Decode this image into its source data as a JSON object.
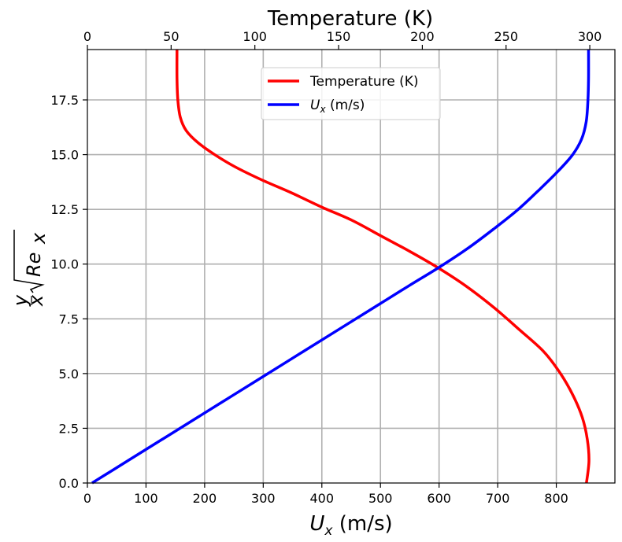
{
  "chart_data": {
    "type": "line",
    "ylabel": "y/x √Re_x",
    "ylabel_parts": {
      "num": "y",
      "den": "x",
      "base": "Re",
      "sub": "x"
    },
    "ylim": [
      0,
      19.8
    ],
    "yticks": [
      0.0,
      2.5,
      5.0,
      7.5,
      10.0,
      12.5,
      15.0,
      17.5
    ],
    "ytick_labels": [
      "0.0",
      "2.5",
      "5.0",
      "7.5",
      "10.0",
      "12.5",
      "15.0",
      "17.5"
    ],
    "bottom_axis": {
      "label": "U_x (m/s)",
      "label_base": "U",
      "label_sub": "x",
      "label_rest": " (m/s)",
      "xlim": [
        0,
        900
      ],
      "ticks": [
        0,
        100,
        200,
        300,
        400,
        500,
        600,
        700,
        800
      ],
      "tick_labels": [
        "0",
        "100",
        "200",
        "300",
        "400",
        "500",
        "600",
        "700",
        "800"
      ]
    },
    "top_axis": {
      "label": "Temperature (K)",
      "xlim": [
        0,
        315
      ],
      "ticks": [
        0,
        50,
        100,
        150,
        200,
        250,
        300
      ],
      "tick_labels": [
        "0",
        "50",
        "100",
        "150",
        "200",
        "250",
        "300"
      ]
    },
    "grid": true,
    "legend": {
      "placement": "upper-center",
      "entries": [
        {
          "label": "Temperature (K)",
          "color": "#ff0000"
        },
        {
          "label": "U_x (m/s)",
          "label_base": "U",
          "label_sub": "x",
          "label_rest": " (m/s)",
          "color": "#0000ff"
        }
      ]
    },
    "series": [
      {
        "name": "Temperature (K)",
        "axis": "top",
        "color": "#ff0000",
        "points": [
          {
            "x": 298.0,
            "y": 0.0
          },
          {
            "x": 299.5,
            "y": 1.0
          },
          {
            "x": 298.5,
            "y": 2.0
          },
          {
            "x": 295.5,
            "y": 3.0
          },
          {
            "x": 290.0,
            "y": 4.0
          },
          {
            "x": 282.5,
            "y": 5.0
          },
          {
            "x": 272.5,
            "y": 6.0
          },
          {
            "x": 258.0,
            "y": 7.0
          },
          {
            "x": 243.0,
            "y": 8.0
          },
          {
            "x": 226.0,
            "y": 9.0
          },
          {
            "x": 209.0,
            "y": 9.85
          },
          {
            "x": 192.0,
            "y": 10.6
          },
          {
            "x": 175.0,
            "y": 11.3
          },
          {
            "x": 158.0,
            "y": 12.0
          },
          {
            "x": 140.0,
            "y": 12.6
          },
          {
            "x": 122.0,
            "y": 13.25
          },
          {
            "x": 104.0,
            "y": 13.85
          },
          {
            "x": 88.0,
            "y": 14.45
          },
          {
            "x": 76.0,
            "y": 15.0
          },
          {
            "x": 66.0,
            "y": 15.55
          },
          {
            "x": 59.0,
            "y": 16.1
          },
          {
            "x": 55.5,
            "y": 16.7
          },
          {
            "x": 54.0,
            "y": 17.5
          },
          {
            "x": 53.5,
            "y": 18.5
          },
          {
            "x": 53.5,
            "y": 19.8
          }
        ]
      },
      {
        "name": "U_x (m/s)",
        "axis": "bottom",
        "color": "#0000ff",
        "points": [
          {
            "x": 8.0,
            "y": 0.0
          },
          {
            "x": 68.0,
            "y": 1.0
          },
          {
            "x": 128.0,
            "y": 2.0
          },
          {
            "x": 188.0,
            "y": 3.0
          },
          {
            "x": 248.0,
            "y": 4.0
          },
          {
            "x": 308.0,
            "y": 5.0
          },
          {
            "x": 368.0,
            "y": 6.0
          },
          {
            "x": 428.0,
            "y": 7.0
          },
          {
            "x": 488.0,
            "y": 8.0
          },
          {
            "x": 548.0,
            "y": 9.0
          },
          {
            "x": 600.0,
            "y": 9.85
          },
          {
            "x": 648.0,
            "y": 10.7
          },
          {
            "x": 693.0,
            "y": 11.6
          },
          {
            "x": 735.0,
            "y": 12.5
          },
          {
            "x": 773.0,
            "y": 13.45
          },
          {
            "x": 805.0,
            "y": 14.3
          },
          {
            "x": 828.0,
            "y": 15.0
          },
          {
            "x": 843.0,
            "y": 15.7
          },
          {
            "x": 851.0,
            "y": 16.5
          },
          {
            "x": 854.0,
            "y": 17.5
          },
          {
            "x": 855.0,
            "y": 18.5
          },
          {
            "x": 855.0,
            "y": 19.8
          }
        ]
      }
    ]
  }
}
